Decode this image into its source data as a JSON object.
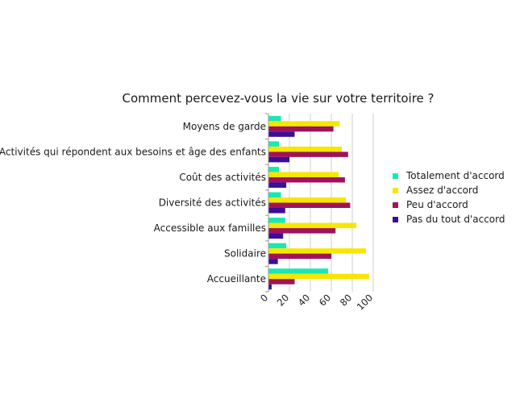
{
  "chart_data": {
    "type": "bar",
    "orientation": "horizontal",
    "title": "Comment percevez-vous la vie sur votre territoire ?",
    "categories": [
      "Moyens de garde",
      "Activités qui répondent aux besoins et âge des enfants",
      "Coût des activités",
      "Diversité des activités",
      "Accessible aux familles",
      "Solidaire",
      "Accueillante"
    ],
    "series": [
      {
        "name": "Totalement d'accord",
        "color": "#19e8b4",
        "values": [
          12,
          10,
          10,
          12,
          16,
          17,
          57
        ]
      },
      {
        "name": "Assez d'accord",
        "color": "#f6e600",
        "values": [
          68,
          70,
          67,
          74,
          84,
          93,
          96
        ]
      },
      {
        "name": "Peu d'accord",
        "color": "#a0125a",
        "values": [
          62,
          76,
          73,
          78,
          64,
          60,
          25
        ]
      },
      {
        "name": "Pas du tout d'accord",
        "color": "#3a0d9a",
        "values": [
          25,
          20,
          17,
          16,
          14,
          9,
          3
        ]
      }
    ],
    "xlim": [
      0,
      100
    ],
    "xticks": [
      0,
      20,
      40,
      60,
      80,
      100
    ],
    "grid": true,
    "legend": "right"
  }
}
